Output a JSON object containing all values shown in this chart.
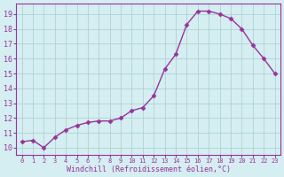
{
  "x": [
    0,
    1,
    2,
    3,
    4,
    5,
    6,
    7,
    8,
    9,
    10,
    11,
    12,
    13,
    14,
    15,
    16,
    17,
    18,
    19,
    20,
    21,
    22,
    23
  ],
  "y": [
    10.4,
    10.5,
    10.0,
    10.7,
    11.2,
    11.5,
    11.7,
    11.8,
    11.8,
    12.0,
    12.5,
    12.7,
    13.5,
    15.3,
    16.3,
    18.3,
    19.2,
    19.2,
    19.0,
    18.7,
    18.0,
    16.9,
    16.0,
    15.0
  ],
  "line_color": "#993399",
  "marker": "D",
  "marker_size": 2.5,
  "bg_color": "#d4eef1",
  "grid_color": "#aacccc",
  "xlabel": "Windchill (Refroidissement éolien,°C)",
  "xlabel_color": "#993399",
  "ylabel_ticks": [
    10,
    11,
    12,
    13,
    14,
    15,
    16,
    17,
    18,
    19
  ],
  "xtick_labels": [
    "0",
    "1",
    "2",
    "3",
    "4",
    "5",
    "6",
    "7",
    "8",
    "9",
    "10",
    "11",
    "12",
    "13",
    "14",
    "15",
    "16",
    "17",
    "18",
    "19",
    "20",
    "21",
    "22",
    "23"
  ],
  "ylim": [
    9.5,
    19.7
  ],
  "xlim": [
    -0.5,
    23.5
  ],
  "tick_color": "#993399",
  "spine_color": "#993399",
  "linewidth": 1.0,
  "figsize": [
    3.2,
    2.0
  ],
  "dpi": 100
}
